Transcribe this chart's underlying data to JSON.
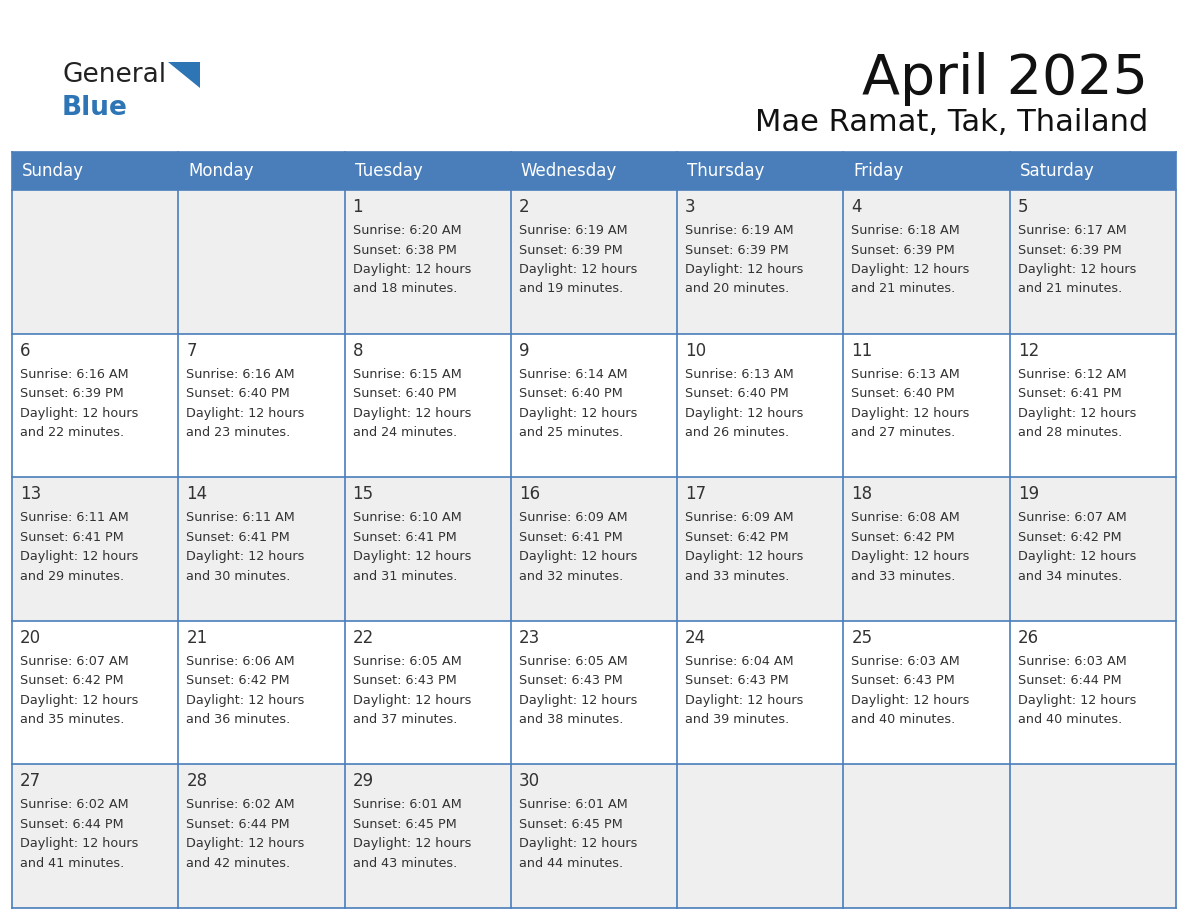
{
  "title": "April 2025",
  "subtitle": "Mae Ramat, Tak, Thailand",
  "header_color": "#4A7EBB",
  "header_text_color": "#FFFFFF",
  "grid_color": "#4A7EBB",
  "text_color": "#333333",
  "cell_bg_even": "#EFEFEF",
  "cell_bg_odd": "#FFFFFF",
  "day_names": [
    "Sunday",
    "Monday",
    "Tuesday",
    "Wednesday",
    "Thursday",
    "Friday",
    "Saturday"
  ],
  "logo_general_color": "#222222",
  "logo_blue_color": "#2E75B6",
  "logo_tri_color": "#2E75B6",
  "days": [
    {
      "day": 1,
      "col": 2,
      "row": 0,
      "sunrise": "6:20 AM",
      "sunset": "6:38 PM",
      "daylight_hours": 12,
      "daylight_minutes": 18
    },
    {
      "day": 2,
      "col": 3,
      "row": 0,
      "sunrise": "6:19 AM",
      "sunset": "6:39 PM",
      "daylight_hours": 12,
      "daylight_minutes": 19
    },
    {
      "day": 3,
      "col": 4,
      "row": 0,
      "sunrise": "6:19 AM",
      "sunset": "6:39 PM",
      "daylight_hours": 12,
      "daylight_minutes": 20
    },
    {
      "day": 4,
      "col": 5,
      "row": 0,
      "sunrise": "6:18 AM",
      "sunset": "6:39 PM",
      "daylight_hours": 12,
      "daylight_minutes": 21
    },
    {
      "day": 5,
      "col": 6,
      "row": 0,
      "sunrise": "6:17 AM",
      "sunset": "6:39 PM",
      "daylight_hours": 12,
      "daylight_minutes": 21
    },
    {
      "day": 6,
      "col": 0,
      "row": 1,
      "sunrise": "6:16 AM",
      "sunset": "6:39 PM",
      "daylight_hours": 12,
      "daylight_minutes": 22
    },
    {
      "day": 7,
      "col": 1,
      "row": 1,
      "sunrise": "6:16 AM",
      "sunset": "6:40 PM",
      "daylight_hours": 12,
      "daylight_minutes": 23
    },
    {
      "day": 8,
      "col": 2,
      "row": 1,
      "sunrise": "6:15 AM",
      "sunset": "6:40 PM",
      "daylight_hours": 12,
      "daylight_minutes": 24
    },
    {
      "day": 9,
      "col": 3,
      "row": 1,
      "sunrise": "6:14 AM",
      "sunset": "6:40 PM",
      "daylight_hours": 12,
      "daylight_minutes": 25
    },
    {
      "day": 10,
      "col": 4,
      "row": 1,
      "sunrise": "6:13 AM",
      "sunset": "6:40 PM",
      "daylight_hours": 12,
      "daylight_minutes": 26
    },
    {
      "day": 11,
      "col": 5,
      "row": 1,
      "sunrise": "6:13 AM",
      "sunset": "6:40 PM",
      "daylight_hours": 12,
      "daylight_minutes": 27
    },
    {
      "day": 12,
      "col": 6,
      "row": 1,
      "sunrise": "6:12 AM",
      "sunset": "6:41 PM",
      "daylight_hours": 12,
      "daylight_minutes": 28
    },
    {
      "day": 13,
      "col": 0,
      "row": 2,
      "sunrise": "6:11 AM",
      "sunset": "6:41 PM",
      "daylight_hours": 12,
      "daylight_minutes": 29
    },
    {
      "day": 14,
      "col": 1,
      "row": 2,
      "sunrise": "6:11 AM",
      "sunset": "6:41 PM",
      "daylight_hours": 12,
      "daylight_minutes": 30
    },
    {
      "day": 15,
      "col": 2,
      "row": 2,
      "sunrise": "6:10 AM",
      "sunset": "6:41 PM",
      "daylight_hours": 12,
      "daylight_minutes": 31
    },
    {
      "day": 16,
      "col": 3,
      "row": 2,
      "sunrise": "6:09 AM",
      "sunset": "6:41 PM",
      "daylight_hours": 12,
      "daylight_minutes": 32
    },
    {
      "day": 17,
      "col": 4,
      "row": 2,
      "sunrise": "6:09 AM",
      "sunset": "6:42 PM",
      "daylight_hours": 12,
      "daylight_minutes": 33
    },
    {
      "day": 18,
      "col": 5,
      "row": 2,
      "sunrise": "6:08 AM",
      "sunset": "6:42 PM",
      "daylight_hours": 12,
      "daylight_minutes": 33
    },
    {
      "day": 19,
      "col": 6,
      "row": 2,
      "sunrise": "6:07 AM",
      "sunset": "6:42 PM",
      "daylight_hours": 12,
      "daylight_minutes": 34
    },
    {
      "day": 20,
      "col": 0,
      "row": 3,
      "sunrise": "6:07 AM",
      "sunset": "6:42 PM",
      "daylight_hours": 12,
      "daylight_minutes": 35
    },
    {
      "day": 21,
      "col": 1,
      "row": 3,
      "sunrise": "6:06 AM",
      "sunset": "6:42 PM",
      "daylight_hours": 12,
      "daylight_minutes": 36
    },
    {
      "day": 22,
      "col": 2,
      "row": 3,
      "sunrise": "6:05 AM",
      "sunset": "6:43 PM",
      "daylight_hours": 12,
      "daylight_minutes": 37
    },
    {
      "day": 23,
      "col": 3,
      "row": 3,
      "sunrise": "6:05 AM",
      "sunset": "6:43 PM",
      "daylight_hours": 12,
      "daylight_minutes": 38
    },
    {
      "day": 24,
      "col": 4,
      "row": 3,
      "sunrise": "6:04 AM",
      "sunset": "6:43 PM",
      "daylight_hours": 12,
      "daylight_minutes": 39
    },
    {
      "day": 25,
      "col": 5,
      "row": 3,
      "sunrise": "6:03 AM",
      "sunset": "6:43 PM",
      "daylight_hours": 12,
      "daylight_minutes": 40
    },
    {
      "day": 26,
      "col": 6,
      "row": 3,
      "sunrise": "6:03 AM",
      "sunset": "6:44 PM",
      "daylight_hours": 12,
      "daylight_minutes": 40
    },
    {
      "day": 27,
      "col": 0,
      "row": 4,
      "sunrise": "6:02 AM",
      "sunset": "6:44 PM",
      "daylight_hours": 12,
      "daylight_minutes": 41
    },
    {
      "day": 28,
      "col": 1,
      "row": 4,
      "sunrise": "6:02 AM",
      "sunset": "6:44 PM",
      "daylight_hours": 12,
      "daylight_minutes": 42
    },
    {
      "day": 29,
      "col": 2,
      "row": 4,
      "sunrise": "6:01 AM",
      "sunset": "6:45 PM",
      "daylight_hours": 12,
      "daylight_minutes": 43
    },
    {
      "day": 30,
      "col": 3,
      "row": 4,
      "sunrise": "6:01 AM",
      "sunset": "6:45 PM",
      "daylight_hours": 12,
      "daylight_minutes": 44
    }
  ]
}
